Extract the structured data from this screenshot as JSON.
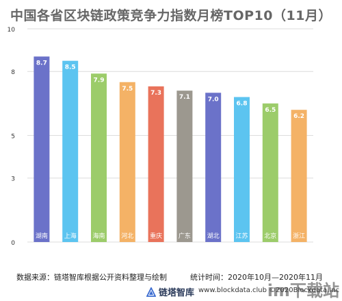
{
  "title": "中国各省区块链政策竞争力指数月榜TOP10（11月）",
  "chart_data": {
    "type": "bar",
    "categories": [
      "湖南",
      "上海",
      "海南",
      "河北",
      "重庆",
      "广东",
      "湖北",
      "江苏",
      "北京",
      "浙江"
    ],
    "values": [
      8.7,
      8.5,
      7.9,
      7.5,
      7.3,
      7.1,
      7.0,
      6.8,
      6.5,
      6.2
    ],
    "value_labels": [
      "8.7",
      "8.5",
      "7.9",
      "7.5",
      "7.3",
      "7.1",
      "7.0",
      "6.8",
      "6.5",
      "6.2"
    ],
    "colors": [
      "#6b72c9",
      "#5cc4f0",
      "#9ccc6a",
      "#f4b266",
      "#e9735b",
      "#9c988f",
      "#6b72c9",
      "#5cc4f0",
      "#9ccc6a",
      "#f4b266"
    ],
    "yticks": [
      0,
      3,
      5,
      8,
      10
    ],
    "ylim": [
      0,
      10
    ],
    "grid": true
  },
  "footer": {
    "source": "数据来源：链塔智库根据公开资料整理与绘制",
    "period": "统计时间：2020年10月—2020年11月"
  },
  "brand": {
    "name": "链塔智库",
    "url": "www.blockdata.club ©2020Blockdata.Inc"
  },
  "watermark": "im下载站"
}
